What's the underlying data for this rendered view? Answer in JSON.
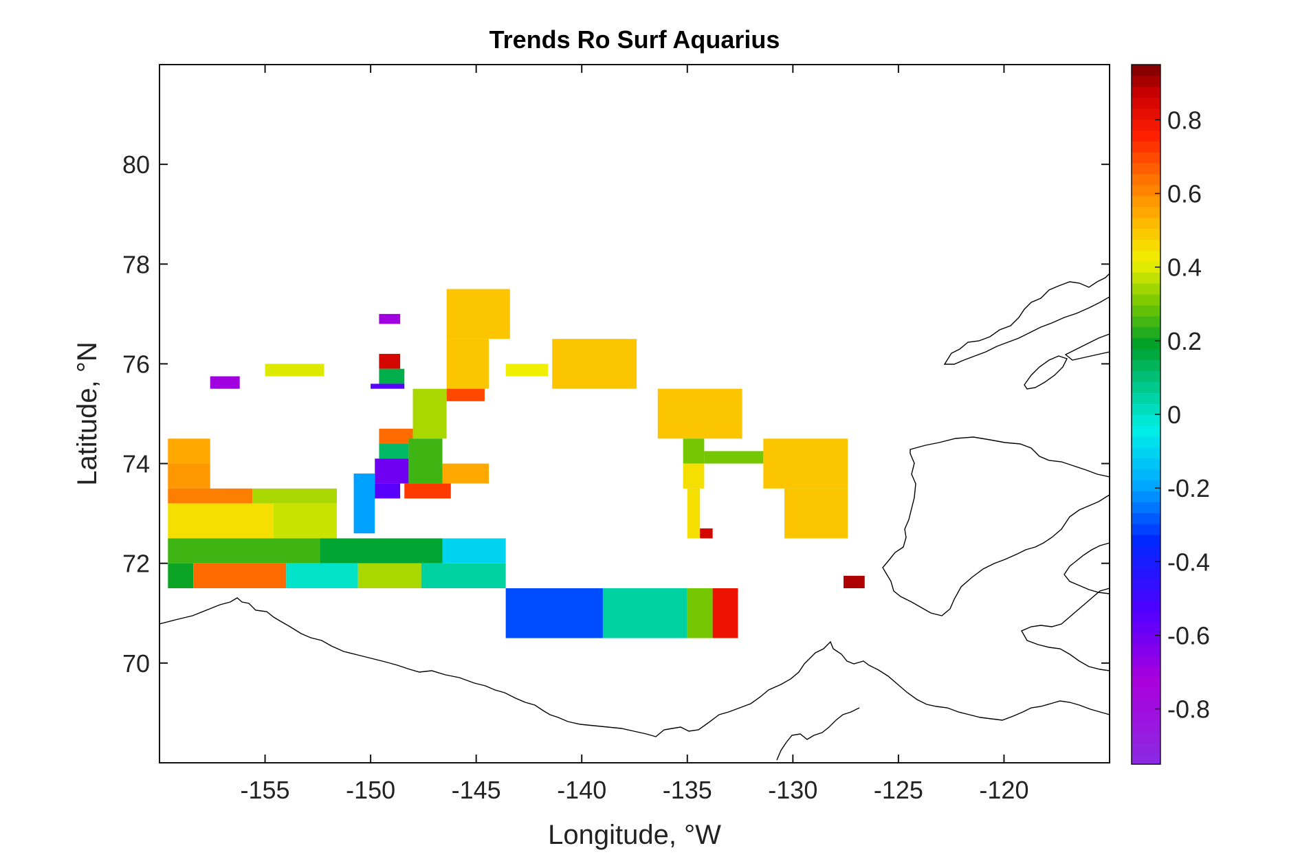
{
  "chart_data": {
    "type": "heatmap",
    "title": "Trends Ro Surf Aquarius",
    "xlabel": "Longitude, °W",
    "ylabel": "Latitude, °N",
    "xlim": [
      -160,
      -115
    ],
    "ylim": [
      68,
      82
    ],
    "xticks": [
      -155,
      -150,
      -145,
      -140,
      -135,
      -130,
      -125,
      -120
    ],
    "yticks": [
      70,
      72,
      74,
      76,
      78,
      80
    ],
    "xtick_labels": [
      "-155",
      "-150",
      "-145",
      "-140",
      "-135",
      "-130",
      "-125",
      "-120"
    ],
    "ytick_labels": [
      "70",
      "72",
      "74",
      "76",
      "78",
      "80"
    ],
    "colorbar": {
      "colormap": "jet-like (violet–blue–cyan–green–yellow–orange–red–dark red)",
      "range": [
        -0.95,
        0.95
      ],
      "ticks": [
        0.8,
        0.6,
        0.4,
        0.2,
        0,
        -0.2,
        -0.4,
        -0.6,
        -0.8
      ],
      "tick_labels": [
        "0.8",
        "0.6",
        "0.4",
        "0.2",
        "0",
        "-0.2",
        "-0.4",
        "-0.6",
        "-0.8"
      ]
    },
    "cells": [
      {
        "lon": [
          -159.6,
          -157.6
        ],
        "lat": [
          74.0,
          74.5
        ],
        "value": 0.55
      },
      {
        "lon": [
          -159.6,
          -157.6
        ],
        "lat": [
          73.5,
          74.0
        ],
        "value": 0.58
      },
      {
        "lon": [
          -159.6,
          -155.6
        ],
        "lat": [
          73.2,
          73.5
        ],
        "value": 0.62
      },
      {
        "lon": [
          -155.6,
          -151.6
        ],
        "lat": [
          73.2,
          73.5
        ],
        "value": 0.35
      },
      {
        "lon": [
          -159.6,
          -154.6
        ],
        "lat": [
          72.5,
          73.2
        ],
        "value": 0.45
      },
      {
        "lon": [
          -154.6,
          -151.6
        ],
        "lat": [
          72.5,
          73.2
        ],
        "value": 0.38
      },
      {
        "lon": [
          -159.6,
          -152.4
        ],
        "lat": [
          72.0,
          72.5
        ],
        "value": 0.25
      },
      {
        "lon": [
          -152.4,
          -146.6
        ],
        "lat": [
          72.0,
          72.5
        ],
        "value": 0.18
      },
      {
        "lon": [
          -146.6,
          -143.6
        ],
        "lat": [
          72.0,
          72.5
        ],
        "value": -0.1
      },
      {
        "lon": [
          -159.6,
          -158.4
        ],
        "lat": [
          71.5,
          72.0
        ],
        "value": 0.2
      },
      {
        "lon": [
          -158.4,
          -154.0
        ],
        "lat": [
          71.5,
          72.0
        ],
        "value": 0.65
      },
      {
        "lon": [
          -154.0,
          -150.6
        ],
        "lat": [
          71.5,
          72.0
        ],
        "value": 0.0
      },
      {
        "lon": [
          -150.6,
          -147.6
        ],
        "lat": [
          71.5,
          72.0
        ],
        "value": 0.35
      },
      {
        "lon": [
          -147.6,
          -143.6
        ],
        "lat": [
          71.5,
          72.0
        ],
        "value": 0.05
      },
      {
        "lon": [
          -143.6,
          -139.0
        ],
        "lat": [
          70.5,
          71.5
        ],
        "value": -0.3
      },
      {
        "lon": [
          -139.0,
          -135.0
        ],
        "lat": [
          70.5,
          71.5
        ],
        "value": 0.05
      },
      {
        "lon": [
          -135.0,
          -133.8
        ],
        "lat": [
          70.5,
          71.5
        ],
        "value": 0.3
      },
      {
        "lon": [
          -133.8,
          -132.6
        ],
        "lat": [
          70.5,
          71.5
        ],
        "value": 0.8
      },
      {
        "lon": [
          -146.4,
          -143.4
        ],
        "lat": [
          76.5,
          77.5
        ],
        "value": 0.5
      },
      {
        "lon": [
          -146.4,
          -144.4
        ],
        "lat": [
          75.5,
          76.5
        ],
        "value": 0.5
      },
      {
        "lon": [
          -141.4,
          -137.4
        ],
        "lat": [
          75.5,
          76.5
        ],
        "value": 0.5
      },
      {
        "lon": [
          -136.4,
          -132.4
        ],
        "lat": [
          74.5,
          75.5
        ],
        "value": 0.5
      },
      {
        "lon": [
          -131.4,
          -127.4
        ],
        "lat": [
          73.5,
          74.5
        ],
        "value": 0.5
      },
      {
        "lon": [
          -130.4,
          -127.4
        ],
        "lat": [
          72.5,
          73.5
        ],
        "value": 0.5
      },
      {
        "lon": [
          -148.0,
          -146.4
        ],
        "lat": [
          74.5,
          75.5
        ],
        "value": 0.35
      },
      {
        "lon": [
          -146.4,
          -144.6
        ],
        "lat": [
          75.25,
          75.5
        ],
        "value": 0.7
      },
      {
        "lon": [
          -149.6,
          -148.0
        ],
        "lat": [
          74.4,
          74.7
        ],
        "value": 0.65
      },
      {
        "lon": [
          -149.6,
          -148.2
        ],
        "lat": [
          74.1,
          74.4
        ],
        "value": 0.12
      },
      {
        "lon": [
          -149.8,
          -148.2
        ],
        "lat": [
          73.6,
          74.1
        ],
        "value": -0.6
      },
      {
        "lon": [
          -148.2,
          -146.6
        ],
        "lat": [
          73.6,
          74.5
        ],
        "value": 0.25
      },
      {
        "lon": [
          -146.6,
          -144.4
        ],
        "lat": [
          73.6,
          74.0
        ],
        "value": 0.55
      },
      {
        "lon": [
          -148.4,
          -146.2
        ],
        "lat": [
          73.3,
          73.6
        ],
        "value": 0.72
      },
      {
        "lon": [
          -150.8,
          -149.8
        ],
        "lat": [
          72.6,
          73.8
        ],
        "value": -0.2
      },
      {
        "lon": [
          -149.8,
          -148.6
        ],
        "lat": [
          73.3,
          73.6
        ],
        "value": -0.55
      },
      {
        "lon": [
          -149.6,
          -148.6
        ],
        "lat": [
          75.9,
          76.2
        ],
        "value": 0.85
      },
      {
        "lon": [
          -149.6,
          -148.4
        ],
        "lat": [
          75.6,
          75.9
        ],
        "value": 0.15
      },
      {
        "lon": [
          -150.0,
          -148.4
        ],
        "lat": [
          75.5,
          75.6
        ],
        "value": -0.55
      },
      {
        "lon": [
          -149.6,
          -148.6
        ],
        "lat": [
          76.8,
          77.0
        ],
        "value": -0.7
      },
      {
        "lon": [
          -157.6,
          -156.2
        ],
        "lat": [
          75.5,
          75.75
        ],
        "value": -0.7
      },
      {
        "lon": [
          -155.0,
          -152.2
        ],
        "lat": [
          75.75,
          76.0
        ],
        "value": 0.4
      },
      {
        "lon": [
          -143.6,
          -141.6
        ],
        "lat": [
          75.75,
          76.0
        ],
        "value": 0.42
      },
      {
        "lon": [
          -135.2,
          -134.2
        ],
        "lat": [
          74.0,
          74.5
        ],
        "value": 0.3
      },
      {
        "lon": [
          -134.2,
          -131.4
        ],
        "lat": [
          74.0,
          74.25
        ],
        "value": 0.3
      },
      {
        "lon": [
          -135.2,
          -134.2
        ],
        "lat": [
          73.5,
          74.0
        ],
        "value": 0.45
      },
      {
        "lon": [
          -135.0,
          -134.4
        ],
        "lat": [
          72.5,
          73.5
        ],
        "value": 0.45
      },
      {
        "lon": [
          -134.4,
          -133.8
        ],
        "lat": [
          72.5,
          72.7
        ],
        "value": 0.85
      },
      {
        "lon": [
          -127.6,
          -126.6
        ],
        "lat": [
          71.5,
          71.75
        ],
        "value": 0.9
      }
    ]
  }
}
